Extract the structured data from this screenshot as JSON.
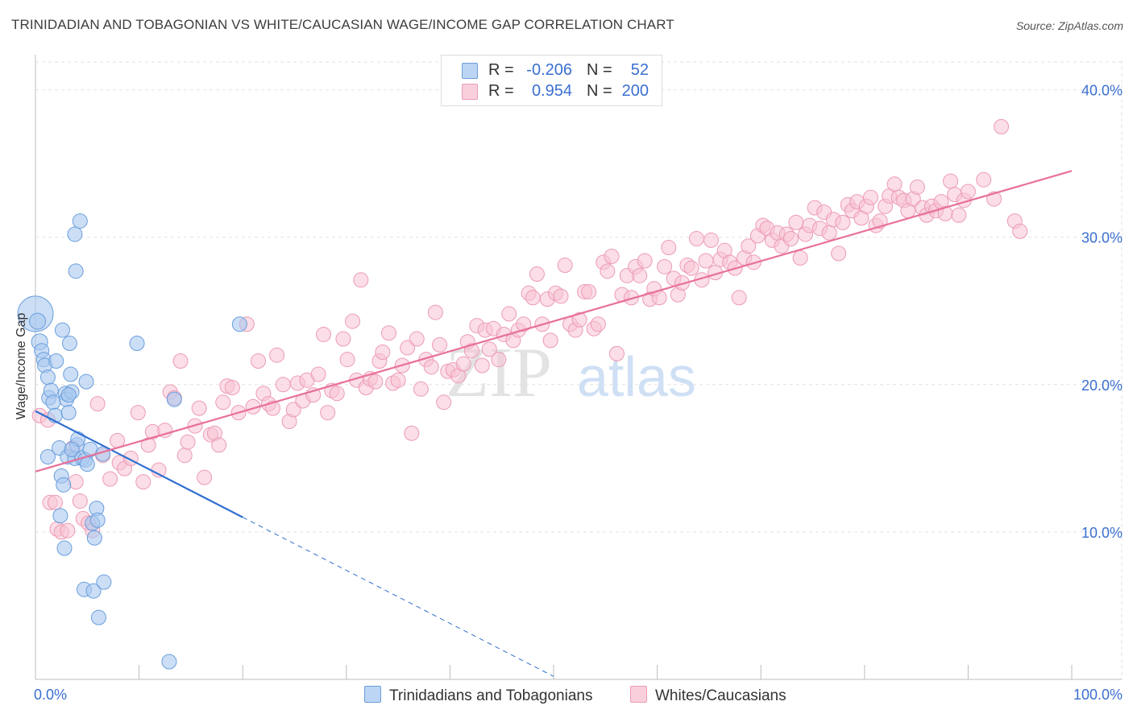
{
  "title": "TRINIDADIAN AND TOBAGONIAN VS WHITE/CAUCASIAN WAGE/INCOME GAP CORRELATION CHART",
  "source": "Source: ZipAtlas.com",
  "watermark": {
    "zip": "ZIP",
    "atlas": "atlas"
  },
  "legend": {
    "rows": [
      {
        "r_label": "R =",
        "r_value": "-0.206",
        "n_label": "N =",
        "n_value": "52",
        "color": "#a9c8f0"
      },
      {
        "r_label": "R =",
        "r_value": "0.954",
        "n_label": "N =",
        "n_value": "200",
        "color": "#f5b8cb"
      }
    ]
  },
  "bottom_legend": {
    "series1": "Trinidadians and Tobagonians",
    "series2": "Whites/Caucasians"
  },
  "colors": {
    "blue_fill": "#a9c8f0",
    "blue_stroke": "#6a9edc",
    "blue_line": "#2f6fd0",
    "pink_fill": "#f7c3d3",
    "pink_stroke": "#ec9bb5",
    "pink_line": "#e8709a",
    "axis_label": "#3a6fd0"
  },
  "chart_data": {
    "type": "scatter",
    "title": "TRINIDADIAN AND TOBAGONIAN VS WHITE/CAUCASIAN WAGE/INCOME GAP CORRELATION CHART",
    "xlabel": "",
    "ylabel": "Wage/Income Gap",
    "xlim": [
      0,
      100
    ],
    "ylim": [
      0,
      42
    ],
    "x_tick_labels": [
      "0.0%",
      "100.0%"
    ],
    "y_ticks": [
      10,
      20,
      30,
      40
    ],
    "y_tick_labels": [
      "10.0%",
      "20.0%",
      "30.0%",
      "40.0%"
    ],
    "grid": true,
    "legend_position": "top-center",
    "series": [
      {
        "name": "Trinidadians and Tobagonians",
        "r": -0.206,
        "n": 52,
        "trend": {
          "x0": 0,
          "y0": 18.2,
          "x1": 20,
          "y1": 11.0,
          "dashed_to_x": 50,
          "dashed_to_y": 0.2
        },
        "points": [
          [
            0,
            24.8,
            22
          ],
          [
            0.2,
            24.3,
            10
          ],
          [
            0.4,
            22.9,
            10
          ],
          [
            0.6,
            22.3,
            9
          ],
          [
            0.8,
            21.7,
            9
          ],
          [
            0.9,
            21.3,
            9
          ],
          [
            1.2,
            20.5,
            9
          ],
          [
            1.3,
            19.1,
            9
          ],
          [
            1.5,
            19.6,
            9
          ],
          [
            1.7,
            18.8,
            9
          ],
          [
            1.9,
            17.9,
            9
          ],
          [
            2.0,
            21.6,
            9
          ],
          [
            2.3,
            15.7,
            9
          ],
          [
            2.4,
            11.1,
            9
          ],
          [
            2.5,
            13.8,
            9
          ],
          [
            2.6,
            23.7,
            9
          ],
          [
            2.7,
            13.2,
            9
          ],
          [
            2.8,
            8.9,
            9
          ],
          [
            2.9,
            19.4,
            9
          ],
          [
            3.0,
            19.0,
            9
          ],
          [
            3.3,
            22.8,
            9
          ],
          [
            3.4,
            20.7,
            9
          ],
          [
            3.5,
            19.5,
            9
          ],
          [
            3.1,
            15.1,
            9
          ],
          [
            3.8,
            30.2,
            9
          ],
          [
            3.2,
            18.1,
            9
          ],
          [
            3.2,
            19.3,
            9
          ],
          [
            3.8,
            15.0,
            9
          ],
          [
            4.0,
            15.9,
            9
          ],
          [
            4.1,
            16.3,
            9
          ],
          [
            3.5,
            15.6,
            9
          ],
          [
            3.9,
            27.7,
            9
          ],
          [
            4.3,
            31.1,
            9
          ],
          [
            4.5,
            15.0,
            9
          ],
          [
            4.7,
            6.1,
            9
          ],
          [
            4.8,
            14.9,
            9
          ],
          [
            4.9,
            20.2,
            9
          ],
          [
            5.0,
            14.6,
            9
          ],
          [
            5.3,
            15.6,
            9
          ],
          [
            5.5,
            10.6,
            9
          ],
          [
            5.6,
            6.0,
            9
          ],
          [
            5.7,
            9.6,
            9
          ],
          [
            5.9,
            11.6,
            9
          ],
          [
            6.0,
            10.8,
            9
          ],
          [
            6.1,
            4.2,
            9
          ],
          [
            6.5,
            15.3,
            9
          ],
          [
            6.6,
            6.6,
            9
          ],
          [
            9.8,
            22.8,
            9
          ],
          [
            12.9,
            1.2,
            9
          ],
          [
            13.4,
            19.0,
            9
          ],
          [
            19.7,
            24.1,
            9
          ],
          [
            1.2,
            15.1,
            9
          ]
        ]
      },
      {
        "name": "Whites/Caucasians",
        "r": 0.954,
        "n": 200,
        "trend": {
          "x0": 0,
          "y0": 14.1,
          "x1": 100,
          "y1": 34.5
        },
        "points": [
          [
            0.4,
            17.9
          ],
          [
            1.2,
            17.6
          ],
          [
            1.4,
            12.0
          ],
          [
            1.9,
            12.0
          ],
          [
            2.1,
            10.2
          ],
          [
            2.5,
            10.0
          ],
          [
            3.1,
            10.1
          ],
          [
            3.6,
            15.7
          ],
          [
            3.9,
            13.4
          ],
          [
            4.3,
            12.1
          ],
          [
            4.6,
            10.9
          ],
          [
            5.1,
            10.6
          ],
          [
            5.5,
            10.1
          ],
          [
            6.0,
            18.7
          ],
          [
            6.5,
            15.2
          ],
          [
            7.2,
            13.6
          ],
          [
            7.9,
            16.2
          ],
          [
            8.1,
            14.7
          ],
          [
            8.6,
            14.3
          ],
          [
            9.2,
            15.0
          ],
          [
            9.9,
            18.1
          ],
          [
            10.4,
            13.4
          ],
          [
            10.9,
            15.9
          ],
          [
            11.3,
            16.8
          ],
          [
            11.9,
            14.2
          ],
          [
            12.5,
            16.9
          ],
          [
            13.0,
            19.5
          ],
          [
            13.4,
            19.1
          ],
          [
            14.0,
            21.6
          ],
          [
            14.4,
            15.2
          ],
          [
            14.7,
            16.1
          ],
          [
            15.4,
            17.2
          ],
          [
            15.8,
            18.4
          ],
          [
            16.3,
            13.7
          ],
          [
            16.9,
            16.6
          ],
          [
            17.3,
            16.7
          ],
          [
            17.7,
            15.9
          ],
          [
            18.1,
            18.8
          ],
          [
            18.5,
            19.9
          ],
          [
            19.0,
            19.8
          ],
          [
            19.6,
            18.1
          ],
          [
            20.4,
            24.1
          ],
          [
            21.0,
            18.5
          ],
          [
            21.5,
            21.6
          ],
          [
            22.0,
            19.4
          ],
          [
            22.5,
            18.7
          ],
          [
            22.9,
            18.4
          ],
          [
            23.3,
            22.0
          ],
          [
            23.9,
            20.0
          ],
          [
            24.5,
            17.5
          ],
          [
            24.9,
            18.3
          ],
          [
            25.3,
            20.1
          ],
          [
            25.8,
            18.9
          ],
          [
            26.2,
            20.3
          ],
          [
            26.8,
            19.3
          ],
          [
            27.3,
            20.7
          ],
          [
            27.8,
            23.4
          ],
          [
            28.2,
            18.1
          ],
          [
            28.6,
            19.6
          ],
          [
            29.1,
            19.4
          ],
          [
            29.7,
            23.1
          ],
          [
            30.1,
            21.7
          ],
          [
            30.6,
            24.3
          ],
          [
            31.0,
            20.3
          ],
          [
            31.4,
            27.1
          ],
          [
            31.9,
            19.8
          ],
          [
            32.3,
            20.4
          ],
          [
            32.8,
            20.2
          ],
          [
            33.2,
            21.6
          ],
          [
            33.5,
            22.2
          ],
          [
            34.1,
            23.5
          ],
          [
            34.5,
            20.1
          ],
          [
            35.0,
            20.3
          ],
          [
            35.4,
            21.3
          ],
          [
            35.9,
            22.5
          ],
          [
            36.3,
            16.7
          ],
          [
            36.8,
            23.1
          ],
          [
            37.2,
            19.7
          ],
          [
            37.7,
            21.7
          ],
          [
            38.2,
            21.2
          ],
          [
            38.6,
            24.9
          ],
          [
            39.0,
            22.7
          ],
          [
            39.4,
            18.8
          ],
          [
            39.8,
            20.9
          ],
          [
            40.3,
            21.0
          ],
          [
            40.8,
            20.6
          ],
          [
            41.3,
            21.4
          ],
          [
            41.7,
            22.9
          ],
          [
            42.1,
            22.3
          ],
          [
            42.6,
            24.0
          ],
          [
            43.1,
            21.3
          ],
          [
            43.4,
            23.7
          ],
          [
            43.8,
            22.4
          ],
          [
            44.2,
            23.8
          ],
          [
            44.7,
            21.7
          ],
          [
            45.2,
            23.4
          ],
          [
            45.7,
            24.8
          ],
          [
            46.1,
            23.0
          ],
          [
            46.6,
            23.7
          ],
          [
            47.1,
            24.1
          ],
          [
            47.6,
            26.2
          ],
          [
            48.0,
            25.9
          ],
          [
            48.4,
            27.5
          ],
          [
            48.9,
            24.1
          ],
          [
            49.4,
            25.8
          ],
          [
            49.7,
            23.0
          ],
          [
            50.2,
            26.2
          ],
          [
            50.7,
            26.0
          ],
          [
            51.1,
            28.1
          ],
          [
            51.6,
            24.1
          ],
          [
            52.1,
            23.7
          ],
          [
            52.5,
            24.4
          ],
          [
            53.0,
            26.3
          ],
          [
            53.4,
            26.3
          ],
          [
            53.9,
            23.8
          ],
          [
            54.3,
            24.1
          ],
          [
            54.8,
            28.3
          ],
          [
            55.2,
            27.7
          ],
          [
            55.6,
            28.7
          ],
          [
            56.1,
            22.1
          ],
          [
            56.6,
            26.1
          ],
          [
            57.1,
            27.4
          ],
          [
            57.5,
            25.9
          ],
          [
            57.9,
            28.0
          ],
          [
            58.3,
            27.4
          ],
          [
            58.8,
            28.4
          ],
          [
            59.3,
            25.8
          ],
          [
            59.7,
            26.5
          ],
          [
            60.2,
            25.9
          ],
          [
            60.7,
            28.0
          ],
          [
            61.1,
            29.3
          ],
          [
            61.6,
            27.2
          ],
          [
            62.0,
            26.1
          ],
          [
            62.4,
            26.9
          ],
          [
            62.9,
            28.1
          ],
          [
            63.3,
            27.9
          ],
          [
            63.8,
            29.9
          ],
          [
            64.3,
            27.1
          ],
          [
            64.7,
            28.4
          ],
          [
            65.2,
            29.8
          ],
          [
            65.6,
            27.6
          ],
          [
            66.1,
            28.5
          ],
          [
            66.5,
            29.1
          ],
          [
            67.0,
            28.3
          ],
          [
            67.5,
            27.9
          ],
          [
            67.9,
            25.9
          ],
          [
            68.4,
            28.6
          ],
          [
            68.8,
            29.4
          ],
          [
            69.3,
            28.3
          ],
          [
            69.7,
            30.1
          ],
          [
            70.2,
            30.8
          ],
          [
            70.6,
            30.6
          ],
          [
            71.1,
            29.8
          ],
          [
            71.6,
            30.3
          ],
          [
            72.0,
            29.4
          ],
          [
            72.5,
            30.2
          ],
          [
            72.9,
            29.9
          ],
          [
            73.4,
            31.0
          ],
          [
            73.8,
            28.6
          ],
          [
            74.3,
            30.2
          ],
          [
            74.7,
            30.8
          ],
          [
            75.2,
            32.0
          ],
          [
            75.7,
            30.6
          ],
          [
            76.1,
            31.7
          ],
          [
            76.6,
            30.3
          ],
          [
            77.0,
            31.2
          ],
          [
            77.5,
            28.9
          ],
          [
            77.9,
            31.0
          ],
          [
            78.4,
            32.2
          ],
          [
            78.8,
            31.8
          ],
          [
            79.3,
            32.4
          ],
          [
            79.7,
            31.3
          ],
          [
            80.2,
            32.1
          ],
          [
            80.6,
            32.7
          ],
          [
            81.1,
            30.8
          ],
          [
            81.5,
            31.1
          ],
          [
            82.0,
            32.1
          ],
          [
            82.4,
            32.8
          ],
          [
            82.9,
            33.6
          ],
          [
            83.3,
            32.7
          ],
          [
            83.8,
            32.5
          ],
          [
            84.2,
            31.8
          ],
          [
            84.7,
            32.6
          ],
          [
            85.1,
            33.4
          ],
          [
            85.6,
            32.0
          ],
          [
            86.0,
            31.5
          ],
          [
            86.5,
            32.1
          ],
          [
            86.9,
            31.8
          ],
          [
            87.4,
            32.4
          ],
          [
            87.8,
            31.6
          ],
          [
            88.3,
            33.8
          ],
          [
            88.7,
            32.9
          ],
          [
            89.1,
            31.5
          ],
          [
            89.6,
            32.5
          ],
          [
            90.0,
            33.1
          ],
          [
            91.5,
            33.9
          ],
          [
            92.5,
            32.6
          ],
          [
            93.2,
            37.5
          ],
          [
            94.5,
            31.1
          ],
          [
            95.0,
            30.4
          ]
        ]
      }
    ]
  }
}
